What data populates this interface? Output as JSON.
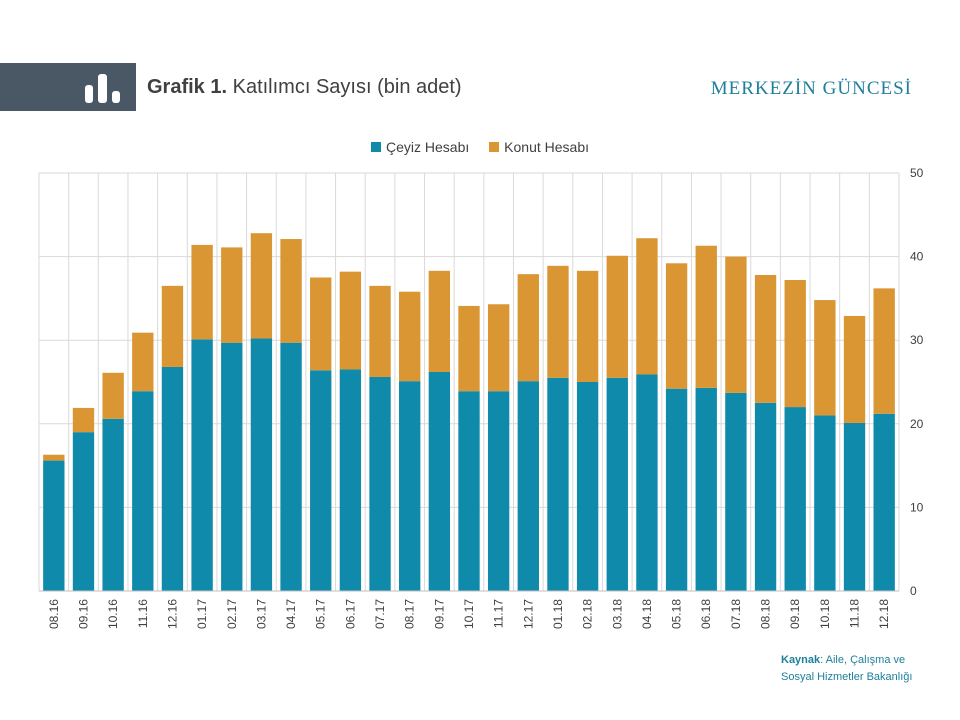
{
  "header": {
    "title_bold": "Grafik 1.",
    "title_rest": " Katılımcı Sayısı (bin adet)",
    "brand": "MERKEZİN GÜNCESİ"
  },
  "icons": {
    "header_icon": "bar-chart-icon"
  },
  "colors": {
    "ceyiz": "#0f8aab",
    "konut": "#d99633",
    "header_block": "#4a5764",
    "brand": "#1e7f9c"
  },
  "source": {
    "label": "Kaynak",
    "text_line1": ": Aile, Çalışma ve",
    "text_line2": "Sosyal Hizmetler Bakanlığı"
  },
  "chart_data": {
    "type": "bar",
    "stacked": true,
    "categories": [
      "08.16",
      "09.16",
      "10.16",
      "11.16",
      "12.16",
      "01.17",
      "02.17",
      "03.17",
      "04.17",
      "05.17",
      "06.17",
      "07.17",
      "08.17",
      "09.17",
      "10.17",
      "11.17",
      "12.17",
      "01.18",
      "02.18",
      "03.18",
      "04.18",
      "05.18",
      "06.18",
      "07.18",
      "08.18",
      "09.18",
      "10.18",
      "11.18",
      "12.18"
    ],
    "series": [
      {
        "name": "Çeyiz Hesabı",
        "values": [
          15.6,
          19.0,
          20.6,
          23.9,
          26.8,
          30.1,
          29.7,
          30.2,
          29.7,
          26.4,
          26.5,
          25.6,
          25.1,
          26.2,
          23.9,
          23.9,
          25.1,
          25.5,
          25.0,
          25.5,
          25.9,
          24.2,
          24.3,
          23.7,
          22.5,
          22.0,
          21.0,
          20.1,
          21.2
        ]
      },
      {
        "name": "Konut Hesabı",
        "values": [
          0.7,
          2.9,
          5.5,
          7.0,
          9.7,
          11.3,
          11.4,
          12.6,
          12.4,
          11.1,
          11.7,
          10.9,
          10.7,
          12.1,
          10.2,
          10.4,
          12.8,
          13.4,
          13.3,
          14.6,
          16.3,
          15.0,
          17.0,
          16.3,
          15.3,
          15.2,
          13.8,
          12.8,
          15.0
        ]
      }
    ],
    "y_ticks": [
      "0",
      "10",
      "20",
      "30",
      "40",
      "50"
    ],
    "ylim": [
      0,
      50
    ],
    "y_axis_side": "right",
    "grid": true,
    "legend": "top-center"
  }
}
